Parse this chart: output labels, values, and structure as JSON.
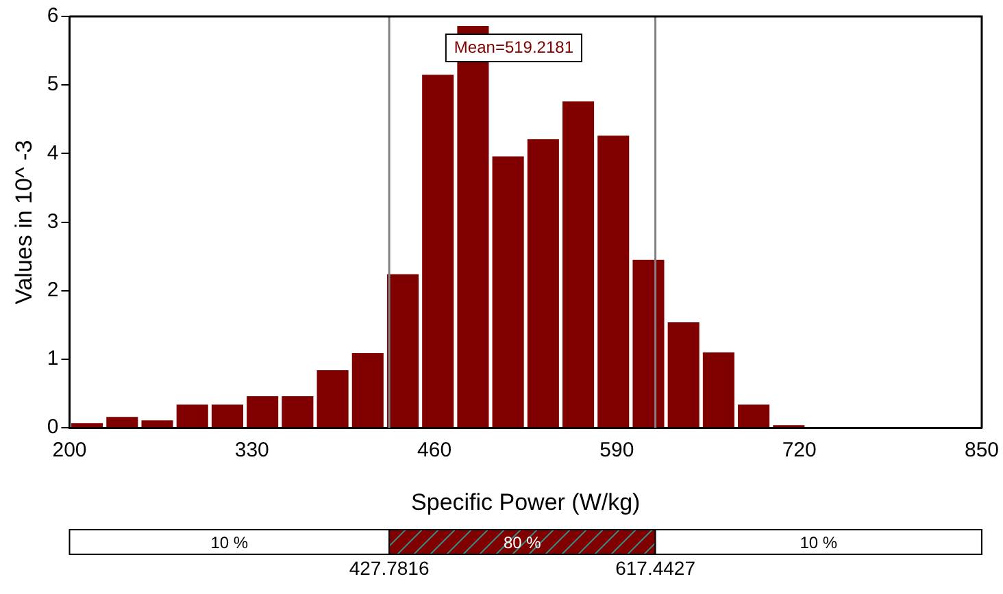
{
  "chart_data": {
    "type": "histogram",
    "xlabel": "Specific Power (W/kg)",
    "ylabel": "Values in 10^ -3",
    "bins": [
      200,
      225,
      250,
      275,
      300,
      325,
      350,
      375,
      400,
      425,
      450,
      475,
      500,
      525,
      550,
      575,
      600,
      625,
      650,
      675,
      700,
      725
    ],
    "values": [
      0.07,
      0.16,
      0.11,
      0.34,
      0.34,
      0.46,
      0.46,
      0.84,
      1.09,
      2.24,
      5.15,
      5.86,
      3.96,
      4.21,
      4.76,
      4.26,
      2.45,
      1.54,
      1.1,
      0.34,
      0.04
    ],
    "color": "#800000",
    "xlim": [
      200,
      850
    ],
    "xticks": [
      200,
      330,
      460,
      590,
      720,
      850
    ],
    "ylim": [
      0,
      6
    ],
    "yticks": [
      0,
      1,
      2,
      3,
      4,
      5,
      6
    ],
    "grid": false,
    "legend": false,
    "ref_lines": [
      {
        "axis": "x",
        "value": 427.7816,
        "color": "#808080"
      },
      {
        "axis": "x",
        "value": 617.4427,
        "color": "#808080"
      }
    ],
    "annotations": [
      "Mean=519.2181",
      "10 %",
      "80 %",
      "10 %",
      "427.7816",
      "617.4427"
    ]
  }
}
